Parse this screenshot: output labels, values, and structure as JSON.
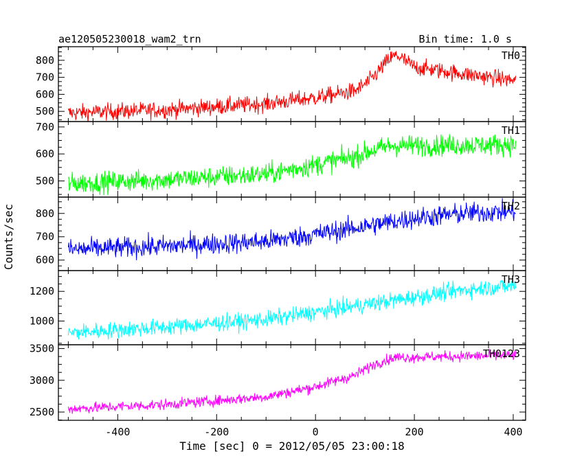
{
  "header": {
    "title": "ae120505230018_wam2_trn",
    "bin_time": "Bin time: 1.0 s"
  },
  "colors": {
    "TH0": "#ff0000",
    "TH1": "#00ff00",
    "TH2": "#0000ff",
    "TH3": "#00ffff",
    "TH0123": "#ff00ff"
  },
  "chart_data": {
    "type": "line",
    "title": "ae120505230018_wam2_trn",
    "xlabel": "Time [sec] 0 = 2012/05/05 23:00:18",
    "ylabel": "Counts/sec",
    "xlim": [
      -520,
      425
    ],
    "xticks": [
      -400,
      -200,
      0,
      200,
      400
    ],
    "grid": false,
    "panels": [
      {
        "name": "TH0",
        "ylim": [
          440,
          880
        ],
        "yticks": [
          500,
          600,
          700,
          800
        ],
        "x_range": [
          -500,
          405
        ],
        "noise": 35,
        "trend": [
          [
            -500,
            490
          ],
          [
            -300,
            510
          ],
          [
            -100,
            545
          ],
          [
            0,
            580
          ],
          [
            80,
            620
          ],
          [
            110,
            680
          ],
          [
            150,
            810
          ],
          [
            165,
            830
          ],
          [
            200,
            760
          ],
          [
            300,
            720
          ],
          [
            405,
            680
          ]
        ]
      },
      {
        "name": "TH1",
        "ylim": [
          440,
          720
        ],
        "yticks": [
          500,
          600,
          700
        ],
        "x_range": [
          -500,
          405
        ],
        "noise": 28,
        "trend": [
          [
            -500,
            490
          ],
          [
            -300,
            505
          ],
          [
            -100,
            525
          ],
          [
            0,
            560
          ],
          [
            80,
            590
          ],
          [
            110,
            610
          ],
          [
            150,
            630
          ],
          [
            405,
            635
          ]
        ]
      },
      {
        "name": "TH2",
        "ylim": [
          555,
          870
        ],
        "yticks": [
          600,
          700,
          800
        ],
        "x_range": [
          -500,
          405
        ],
        "noise": 32,
        "trend": [
          [
            -500,
            645
          ],
          [
            -300,
            660
          ],
          [
            -100,
            680
          ],
          [
            0,
            710
          ],
          [
            100,
            745
          ],
          [
            200,
            780
          ],
          [
            300,
            800
          ],
          [
            405,
            810
          ]
        ]
      },
      {
        "name": "TH3",
        "ylim": [
          840,
          1340
        ],
        "yticks": [
          1000,
          1200
        ],
        "x_range": [
          -500,
          405
        ],
        "noise": 40,
        "trend": [
          [
            -500,
            920
          ],
          [
            -300,
            960
          ],
          [
            -100,
            1010
          ],
          [
            0,
            1060
          ],
          [
            100,
            1110
          ],
          [
            200,
            1160
          ],
          [
            300,
            1210
          ],
          [
            405,
            1240
          ]
        ]
      },
      {
        "name": "TH0123",
        "ylim": [
          2370,
          3560
        ],
        "yticks": [
          2500,
          3000,
          3500
        ],
        "x_range": [
          -500,
          405
        ],
        "noise": 60,
        "trend": [
          [
            -500,
            2550
          ],
          [
            -300,
            2620
          ],
          [
            -100,
            2740
          ],
          [
            0,
            2900
          ],
          [
            80,
            3080
          ],
          [
            120,
            3260
          ],
          [
            160,
            3360
          ],
          [
            300,
            3380
          ],
          [
            405,
            3390
          ]
        ]
      }
    ]
  }
}
